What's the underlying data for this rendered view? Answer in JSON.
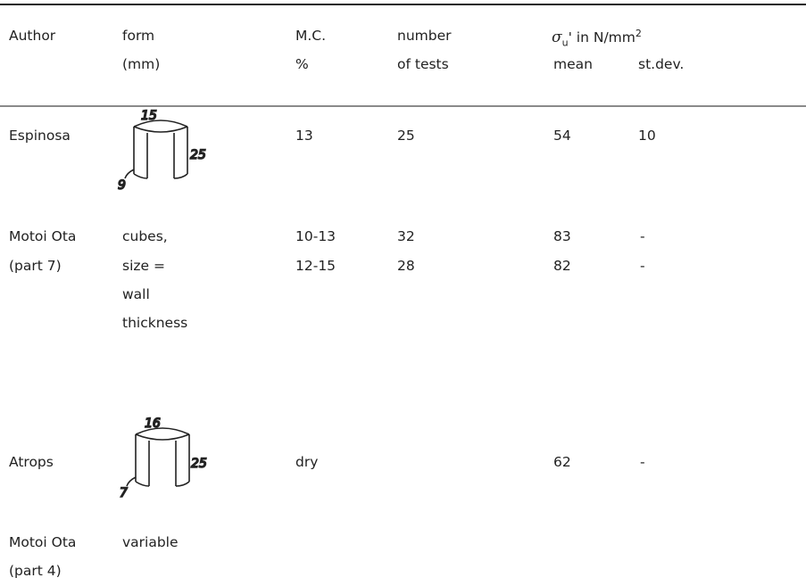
{
  "header": {
    "author": "Author",
    "form": [
      "form",
      "(mm)"
    ],
    "mc": [
      "M.C.",
      "%"
    ],
    "tests": [
      "number",
      "of tests"
    ],
    "strength": {
      "symbol": "σ",
      "subscript": "u",
      "prime": "'",
      "text": " in N/mm",
      "superscript": "2"
    },
    "mean": "mean",
    "stdev": "st.dev."
  },
  "rows": [
    {
      "author": [
        "Espinosa"
      ],
      "sketch": {
        "top": "15",
        "side": "25",
        "bottom": "9"
      },
      "mc": [
        "13"
      ],
      "tests": [
        "25"
      ],
      "mean": [
        "54"
      ],
      "stdev": [
        "10"
      ]
    },
    {
      "author": [
        "Motoi Ota",
        "(part 7)"
      ],
      "form": [
        "cubes,",
        "size =",
        "wall",
        "thickness"
      ],
      "mc": [
        "10-13",
        "12-15"
      ],
      "tests": [
        "32",
        "28"
      ],
      "mean": [
        "83",
        "82"
      ],
      "stdev": [
        "-",
        "-"
      ]
    },
    {
      "author": [
        "Atrops"
      ],
      "sketch": {
        "top": "16",
        "side": "25",
        "bottom": "7"
      },
      "mc": [
        "dry"
      ],
      "mean": [
        "62"
      ],
      "stdev": [
        "-"
      ]
    },
    {
      "author": [
        "Motoi Ota",
        "(part 4)"
      ],
      "form": [
        "variable"
      ]
    }
  ]
}
